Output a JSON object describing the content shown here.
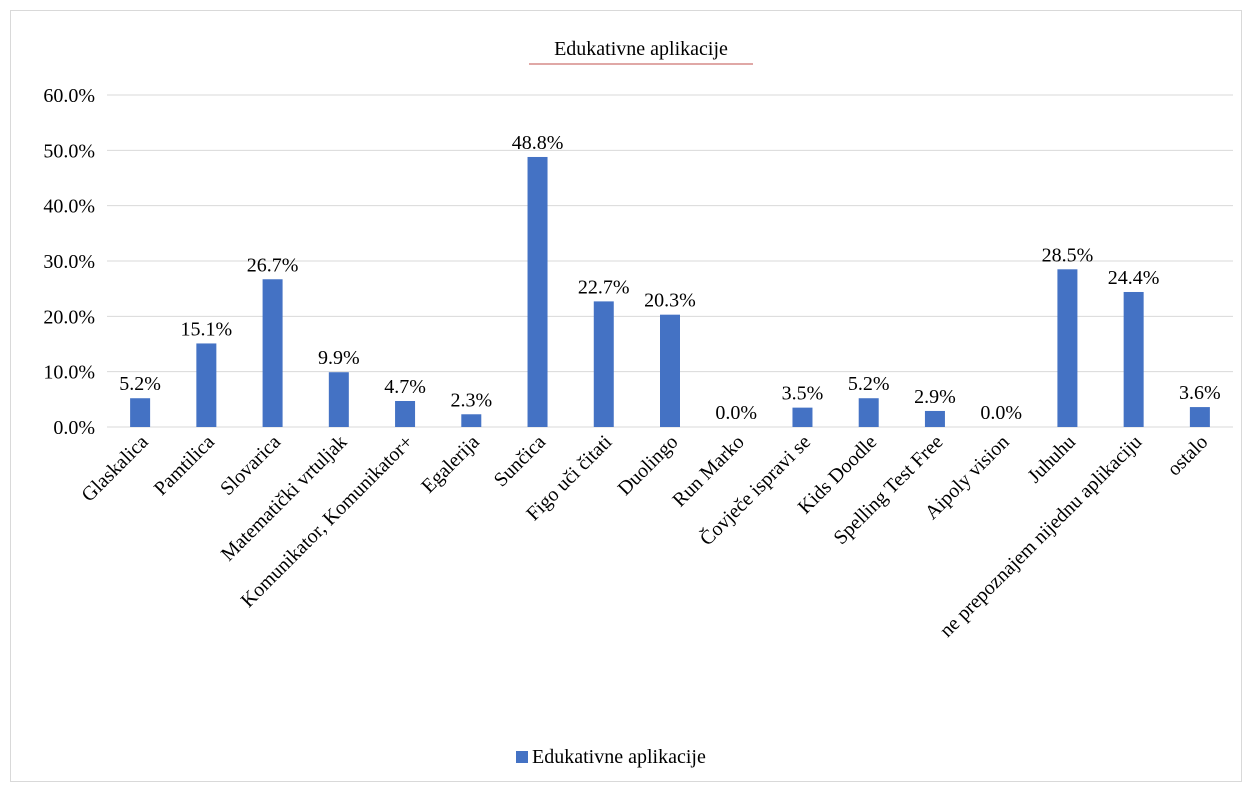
{
  "chart_data": {
    "type": "bar",
    "title": "Edukativne aplikacije",
    "categories": [
      "Glaskalica",
      "Pamtilica",
      "Slovarica",
      "Matematički vrtuljak",
      "Komunikator, Komunikator+",
      "Egalerija",
      "Sunčica",
      "Figo uči čitati",
      "Duolingo",
      "Run Marko",
      "Čovječe ispravi se",
      "Kids Doodle",
      "Spelling Test Free",
      "Aipoly vision",
      "Juhuhu",
      "ne prepoznajem nijednu aplikaciju",
      "ostalo"
    ],
    "series": [
      {
        "name": "Edukativne aplikacije",
        "values": [
          5.2,
          15.1,
          26.7,
          9.9,
          4.7,
          2.3,
          48.8,
          22.7,
          20.3,
          0.0,
          3.5,
          5.2,
          2.9,
          0.0,
          28.5,
          24.4,
          3.6
        ],
        "labels": [
          "5.2%",
          "15.1%",
          "26.7%",
          "9.9%",
          "4.7%",
          "2.3%",
          "48.8%",
          "22.7%",
          "20.3%",
          "0.0%",
          "3.5%",
          "5.2%",
          "2.9%",
          "0.0%",
          "28.5%",
          "24.4%",
          "3.6%"
        ],
        "color": "#4472c4"
      }
    ],
    "y_ticks": [
      "0.0%",
      "10.0%",
      "20.0%",
      "30.0%",
      "40.0%",
      "50.0%",
      "60.0%"
    ],
    "ylim": [
      0,
      60
    ],
    "grid": true,
    "legend_position": "bottom",
    "gridline_color": "#d9d9d9",
    "title_underline_color": "#c0504d"
  }
}
